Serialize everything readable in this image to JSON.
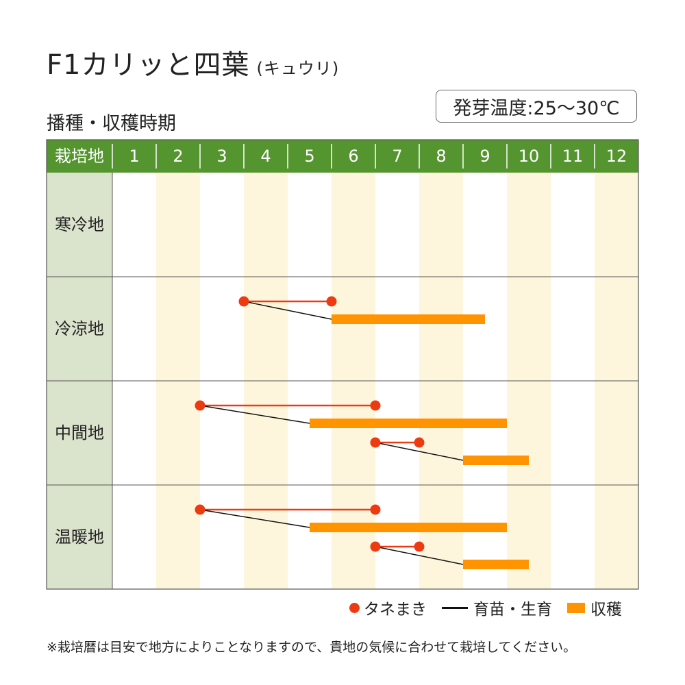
{
  "title": "F1カリッと四葉",
  "title_sub": "(キュウリ)",
  "section_title": "播種・収穫時期",
  "germination_label": "発芽温度:25〜30℃",
  "chart_data": {
    "type": "gantt",
    "header_label": "栽培地",
    "categories": [
      "1",
      "2",
      "3",
      "4",
      "5",
      "6",
      "7",
      "8",
      "9",
      "10",
      "11",
      "12"
    ],
    "colors": {
      "header": "#55952f",
      "region_cell": "#dae3cc",
      "stripe": "#fdf6dc",
      "sowing": "#ee3a10",
      "growing": "#111111",
      "harvest": "#ff9300"
    },
    "regions": [
      {
        "name": "寒冷地",
        "schedules": []
      },
      {
        "name": "冷涼地",
        "schedules": [
          {
            "sow": [
              4.0,
              6.0
            ],
            "harvest": [
              6.0,
              9.5
            ]
          }
        ]
      },
      {
        "name": "中間地",
        "schedules": [
          {
            "sow": [
              3.0,
              7.0
            ],
            "harvest": [
              5.5,
              10.0
            ]
          },
          {
            "sow": [
              7.0,
              8.0
            ],
            "harvest": [
              9.0,
              10.5
            ]
          }
        ]
      },
      {
        "name": "温暖地",
        "schedules": [
          {
            "sow": [
              3.0,
              7.0
            ],
            "harvest": [
              5.5,
              10.0
            ]
          },
          {
            "sow": [
              7.0,
              8.0
            ],
            "harvest": [
              9.0,
              10.5
            ]
          }
        ]
      }
    ]
  },
  "legend": {
    "sowing": "タネまき",
    "growing": "育苗・生育",
    "harvest": "収穫"
  },
  "note": "※栽培暦は目安で地方によりことなりますので、貴地の気候に合わせて栽培してください。"
}
